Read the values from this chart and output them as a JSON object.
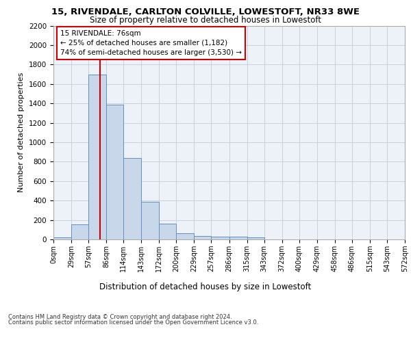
{
  "title1": "15, RIVENDALE, CARLTON COLVILLE, LOWESTOFT, NR33 8WE",
  "title2": "Size of property relative to detached houses in Lowestoft",
  "xlabel": "Distribution of detached houses by size in Lowestoft",
  "ylabel": "Number of detached properties",
  "bin_edges": [
    0,
    29,
    57,
    86,
    114,
    143,
    172,
    200,
    229,
    257,
    286,
    315,
    343,
    372,
    400,
    429,
    458,
    486,
    515,
    543,
    572
  ],
  "bar_heights": [
    20,
    155,
    1700,
    1390,
    835,
    385,
    165,
    65,
    38,
    30,
    30,
    20,
    0,
    0,
    0,
    0,
    0,
    0,
    0,
    0
  ],
  "bar_color": "#c8d8ea",
  "bar_edge_color": "#6090c0",
  "grid_color": "#c8d0dc",
  "bg_color": "#edf2f8",
  "property_size": 76,
  "annotation_line1": "15 RIVENDALE: 76sqm",
  "annotation_line2": "← 25% of detached houses are smaller (1,182)",
  "annotation_line3": "74% of semi-detached houses are larger (3,530) →",
  "vline_color": "#cc0000",
  "annotation_box_color": "#cc0000",
  "ylim": [
    0,
    2200
  ],
  "yticks": [
    0,
    200,
    400,
    600,
    800,
    1000,
    1200,
    1400,
    1600,
    1800,
    2000,
    2200
  ],
  "footer1": "Contains HM Land Registry data © Crown copyright and database right 2024.",
  "footer2": "Contains public sector information licensed under the Open Government Licence v3.0."
}
